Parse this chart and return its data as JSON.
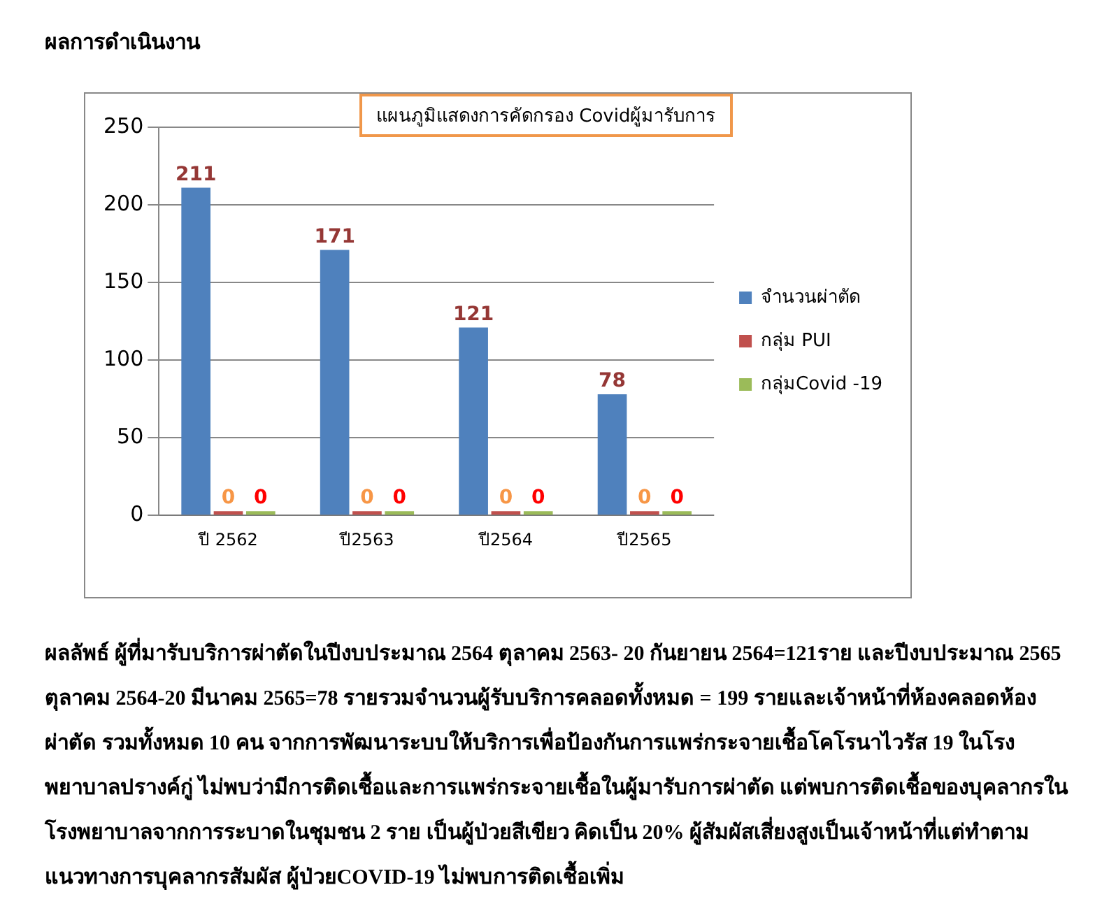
{
  "chart_data": {
    "type": "bar",
    "title": "แผนภูมิแสดงการคัดกรอง Covidผู้มารับการ",
    "categories": [
      "ปี 2562",
      "ปี2563",
      "ปี2564",
      "ปี2565"
    ],
    "series": [
      {
        "name": "จำนวนผ่าตัด",
        "color": "#4f81bd",
        "values": [
          211,
          171,
          121,
          78
        ]
      },
      {
        "name": "กลุ่ม PUI",
        "color": "#c0504d",
        "values": [
          0,
          0,
          0,
          0
        ]
      },
      {
        "name": "กลุ่มCovid -19",
        "color": "#9bbb59",
        "values": [
          0,
          0,
          0,
          0
        ]
      }
    ],
    "ylim": [
      0,
      250
    ],
    "yticks": [
      0,
      50,
      100,
      150,
      200,
      250
    ],
    "grid": "y",
    "legend": "right",
    "data_labels": true,
    "annotations": [
      "ผลการดำเนินงาน",
      "ผลลัพธ์ ผู้ที่มารับบริการผ่าตัดในปีงบประมาณ 2564 ตุลาคม 2563- 20 กันยายน 2564=121ราย และปีงบประมาณ 2565 ตุลาคม 2564-20 มีนาคม 2565=78 รายรวมจำนวนผู้รับบริการคลอดทั้งหมด = 199 รายและเจ้าหน้าที่ห้องคลอดห้องผ่าตัด รวมทั้งหมด 10 คน จากการพัฒนาระบบให้บริการเพื่อป้องกันการแพร่กระจายเชื้อโคโรนาไวรัส 19 ในโรงพยาบาลปรางค์กู่ ไม่พบว่ามีการติดเชื้อและการแพร่กระจายเชื้อในผู้มารับการผ่าตัด แต่พบการติดเชื้อของบุคลากรในโรงพยาบาลจากการระบาดในชุมชน 2 ราย เป็นผู้ป่วยสีเขียว คิดเป็น 20% ผู้สัมผัสเสี่ยงสูงเป็นเจ้าหน้าที่แต่ทำตามแนวทางการบุคลากรสัมผัส ผู้ป่วยCOVID-19 ไม่พบการติดเชื้อเพิ่ม"
    ]
  }
}
